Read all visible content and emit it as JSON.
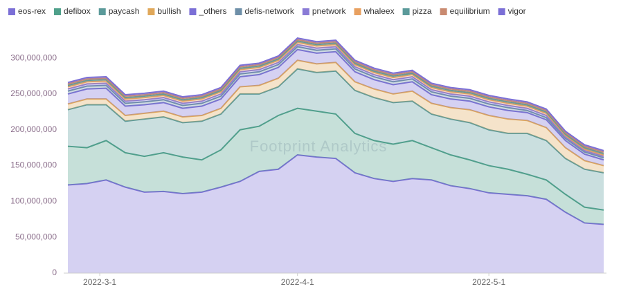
{
  "chart_data": {
    "type": "stacked-area",
    "watermark": "Footprint Analytics",
    "x": [
      "2022-2-24",
      "2022-2-27",
      "2022-3-2",
      "2022-3-5",
      "2022-3-8",
      "2022-3-11",
      "2022-3-14",
      "2022-3-17",
      "2022-3-20",
      "2022-3-23",
      "2022-3-26",
      "2022-3-29",
      "2022-4-1",
      "2022-4-4",
      "2022-4-7",
      "2022-4-10",
      "2022-4-13",
      "2022-4-16",
      "2022-4-19",
      "2022-4-22",
      "2022-4-25",
      "2022-4-28",
      "2022-5-1",
      "2022-5-4",
      "2022-5-7",
      "2022-5-10",
      "2022-5-13",
      "2022-5-16",
      "2022-5-19"
    ],
    "xlim": [
      "2022-2-24",
      "2022-5-19"
    ],
    "xticks": [
      "2022-3-1",
      "2022-4-1",
      "2022-5-1"
    ],
    "ylim": [
      0,
      330000000
    ],
    "yticks": [
      0,
      {
        "value": 50000000,
        "label": "50,000,000"
      },
      {
        "value": 100000000,
        "label": "100,000,000"
      },
      {
        "value": 150000000,
        "label": "150,000,000"
      },
      {
        "value": 200000000,
        "label": "200,000,000"
      },
      {
        "value": 250000000,
        "label": "250,000,000"
      },
      {
        "value": 300000000,
        "label": "300,000,000"
      }
    ],
    "grid": false,
    "legend": "top",
    "series": [
      {
        "name": "eos-rex",
        "color": "#7b6fd6",
        "values": [
          123000000,
          125000000,
          130000000,
          120000000,
          113000000,
          114000000,
          111000000,
          113000000,
          120000000,
          128000000,
          142000000,
          145000000,
          165000000,
          162000000,
          160000000,
          140000000,
          132000000,
          128000000,
          132000000,
          130000000,
          122000000,
          118000000,
          112000000,
          110000000,
          108000000,
          103000000,
          85000000,
          70000000,
          68000000
        ]
      },
      {
        "name": "defibox",
        "color": "#4fa08a",
        "values": [
          54000000,
          50000000,
          55000000,
          48000000,
          50000000,
          54000000,
          51000000,
          45000000,
          52000000,
          72000000,
          63000000,
          75000000,
          65000000,
          64000000,
          62000000,
          55000000,
          53000000,
          52000000,
          53000000,
          45000000,
          43000000,
          40000000,
          38000000,
          35000000,
          30000000,
          27000000,
          25000000,
          22000000,
          20000000
        ]
      },
      {
        "name": "paycash",
        "color": "#5b9a9a",
        "values": [
          51000000,
          60000000,
          50000000,
          44000000,
          52000000,
          50000000,
          48000000,
          54000000,
          50000000,
          50000000,
          45000000,
          40000000,
          55000000,
          54000000,
          60000000,
          60000000,
          60000000,
          58000000,
          55000000,
          47000000,
          50000000,
          52000000,
          50000000,
          50000000,
          57000000,
          55000000,
          50000000,
          53000000,
          52000000
        ]
      },
      {
        "name": "bullish",
        "color": "#e0a85a",
        "values": [
          8000000,
          8000000,
          8000000,
          8000000,
          8000000,
          8000000,
          8000000,
          8000000,
          8000000,
          10000000,
          12000000,
          12000000,
          12000000,
          12000000,
          12000000,
          12000000,
          12000000,
          12000000,
          14000000,
          15000000,
          16000000,
          18000000,
          20000000,
          20000000,
          18000000,
          18000000,
          15000000,
          12000000,
          10000000
        ]
      },
      {
        "name": "_others",
        "color": "#7b6fd6",
        "values": [
          14000000,
          14000000,
          15000000,
          13000000,
          12000000,
          12000000,
          12000000,
          13000000,
          13000000,
          14000000,
          15000000,
          15000000,
          15000000,
          15000000,
          15000000,
          14000000,
          13000000,
          13000000,
          13000000,
          12000000,
          12000000,
          12000000,
          12000000,
          12000000,
          11000000,
          11000000,
          10000000,
          9000000,
          8000000
        ]
      },
      {
        "name": "defis-network",
        "color": "#6e8fa8",
        "values": [
          4000000,
          4000000,
          4000000,
          4000000,
          4000000,
          4000000,
          4000000,
          4000000,
          4000000,
          4000000,
          4000000,
          4000000,
          4000000,
          4000000,
          4000000,
          4000000,
          4000000,
          4000000,
          4000000,
          4000000,
          4000000,
          4000000,
          4000000,
          4000000,
          3000000,
          3000000,
          3000000,
          3000000,
          3000000
        ]
      },
      {
        "name": "pnetwork",
        "color": "#8a7bd6",
        "values": [
          3000000,
          3000000,
          3000000,
          3000000,
          3000000,
          3000000,
          3000000,
          3000000,
          3000000,
          3000000,
          3000000,
          3000000,
          3000000,
          3000000,
          3000000,
          3000000,
          3000000,
          3000000,
          3000000,
          3000000,
          3000000,
          3000000,
          3000000,
          3000000,
          3000000,
          3000000,
          2000000,
          2000000,
          2000000
        ]
      },
      {
        "name": "whaleex",
        "color": "#e8a060",
        "values": [
          3000000,
          3000000,
          3000000,
          3000000,
          3000000,
          3000000,
          3000000,
          3000000,
          3000000,
          3000000,
          3000000,
          3000000,
          3000000,
          3000000,
          3000000,
          3000000,
          3000000,
          3000000,
          3000000,
          3000000,
          3000000,
          3000000,
          3000000,
          3000000,
          3000000,
          3000000,
          2000000,
          2000000,
          2000000
        ]
      },
      {
        "name": "pizza",
        "color": "#5b9a9a",
        "values": [
          2000000,
          2000000,
          2000000,
          2000000,
          2000000,
          2000000,
          2000000,
          2000000,
          2000000,
          2000000,
          2000000,
          2000000,
          2000000,
          2000000,
          2000000,
          2000000,
          2000000,
          2000000,
          2000000,
          2000000,
          2000000,
          2000000,
          2000000,
          2000000,
          2000000,
          2000000,
          2000000,
          2000000,
          2000000
        ]
      },
      {
        "name": "equilibrium",
        "color": "#c98a70",
        "values": [
          2000000,
          2000000,
          2000000,
          2000000,
          2000000,
          2000000,
          2000000,
          2000000,
          2000000,
          2000000,
          2000000,
          2000000,
          2000000,
          2000000,
          2000000,
          2000000,
          2000000,
          2000000,
          2000000,
          2000000,
          2000000,
          2000000,
          2000000,
          2000000,
          2000000,
          2000000,
          2000000,
          2000000,
          2000000
        ]
      },
      {
        "name": "vigor",
        "color": "#7b6fd6",
        "values": [
          2000000,
          2000000,
          2000000,
          2000000,
          2000000,
          2000000,
          2000000,
          2000000,
          2000000,
          2000000,
          2000000,
          2000000,
          2000000,
          2000000,
          2000000,
          2000000,
          2000000,
          2000000,
          2000000,
          2000000,
          2000000,
          2000000,
          2000000,
          2000000,
          2000000,
          2000000,
          2000000,
          2000000,
          2000000
        ]
      }
    ]
  }
}
